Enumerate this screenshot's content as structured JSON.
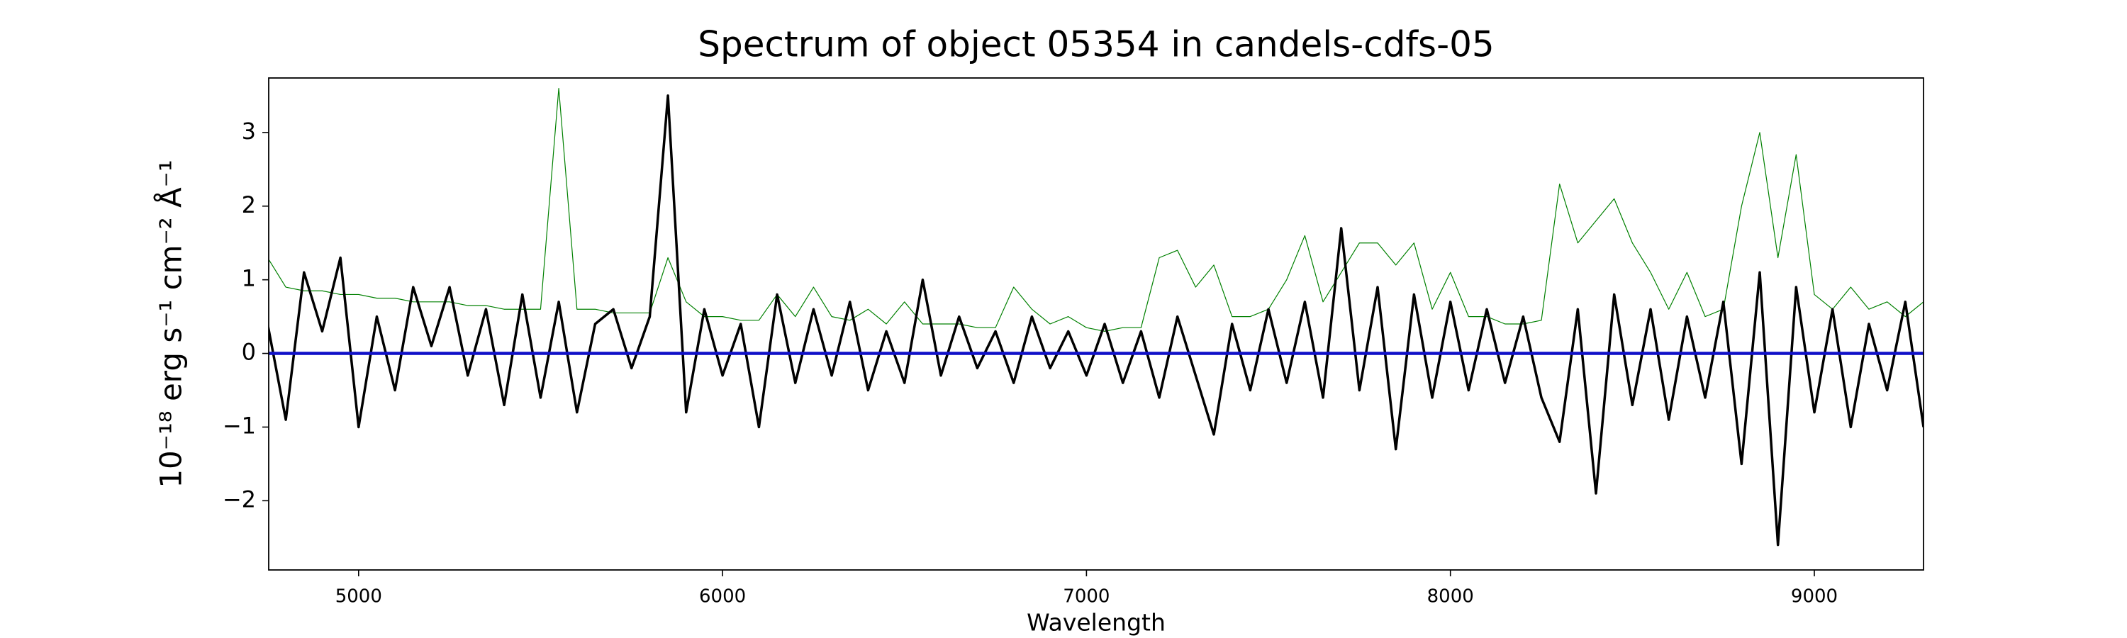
{
  "chart_data": {
    "type": "line",
    "title": "Spectrum of object 05354 in candels-cdfs-05",
    "x_label": "Wavelength",
    "y_label": "10⁻¹⁸ erg s⁻¹ cm⁻² Å⁻¹",
    "xlim": [
      4753,
      9300
    ],
    "ylim": [
      -2.94,
      3.74
    ],
    "xticks": [
      5000,
      6000,
      7000,
      8000,
      9000
    ],
    "yticks": [
      {
        "value": -2,
        "label": "−2"
      },
      {
        "value": -1,
        "label": "−1"
      },
      0,
      1,
      2,
      3
    ],
    "grid": false,
    "series": [
      {
        "color": "#008000",
        "width": 1.2,
        "x": [
          4750,
          4800,
          4850,
          4900,
          4950,
          5000,
          5050,
          5100,
          5150,
          5200,
          5250,
          5300,
          5350,
          5400,
          5450,
          5500,
          5550,
          5600,
          5650,
          5700,
          5750,
          5800,
          5850,
          5900,
          5950,
          6000,
          6050,
          6100,
          6150,
          6200,
          6250,
          6300,
          6350,
          6400,
          6450,
          6500,
          6550,
          6600,
          6650,
          6700,
          6750,
          6800,
          6850,
          6900,
          6950,
          7000,
          7050,
          7100,
          7150,
          7200,
          7250,
          7300,
          7350,
          7400,
          7450,
          7500,
          7550,
          7600,
          7650,
          7700,
          7750,
          7800,
          7850,
          7900,
          7950,
          8000,
          8050,
          8100,
          8150,
          8200,
          8250,
          8300,
          8350,
          8400,
          8450,
          8500,
          8550,
          8600,
          8650,
          8700,
          8750,
          8800,
          8850,
          8900,
          8950,
          9000,
          9050,
          9100,
          9150,
          9200,
          9250,
          9300
        ],
        "values": [
          1.3,
          0.9,
          0.85,
          0.85,
          0.8,
          0.8,
          0.75,
          0.75,
          0.7,
          0.7,
          0.7,
          0.65,
          0.65,
          0.6,
          0.6,
          0.6,
          3.6,
          0.6,
          0.6,
          0.55,
          0.55,
          0.55,
          1.3,
          0.7,
          0.5,
          0.5,
          0.45,
          0.45,
          0.8,
          0.5,
          0.9,
          0.5,
          0.45,
          0.6,
          0.4,
          0.7,
          0.4,
          0.4,
          0.4,
          0.35,
          0.35,
          0.9,
          0.6,
          0.4,
          0.5,
          0.35,
          0.3,
          0.35,
          0.35,
          1.3,
          1.4,
          0.9,
          1.2,
          0.5,
          0.5,
          0.6,
          1.0,
          1.6,
          0.7,
          1.1,
          1.5,
          1.5,
          1.2,
          1.5,
          0.6,
          1.1,
          0.5,
          0.5,
          0.4,
          0.4,
          0.45,
          2.3,
          1.5,
          1.8,
          2.1,
          1.5,
          1.1,
          0.6,
          1.1,
          0.5,
          0.6,
          2.0,
          3.0,
          1.3,
          2.7,
          0.8,
          0.6,
          0.9,
          0.6,
          0.7,
          0.5,
          0.7
        ]
      },
      {
        "color": "#000000",
        "width": 3.5,
        "x": [
          4750,
          4800,
          4850,
          4900,
          4950,
          5000,
          5050,
          5100,
          5150,
          5200,
          5250,
          5300,
          5350,
          5400,
          5450,
          5500,
          5550,
          5600,
          5650,
          5700,
          5750,
          5800,
          5850,
          5900,
          5950,
          6000,
          6050,
          6100,
          6150,
          6200,
          6250,
          6300,
          6350,
          6400,
          6450,
          6500,
          6550,
          6600,
          6650,
          6700,
          6750,
          6800,
          6850,
          6900,
          6950,
          7000,
          7050,
          7100,
          7150,
          7200,
          7250,
          7300,
          7350,
          7400,
          7450,
          7500,
          7550,
          7600,
          7650,
          7700,
          7750,
          7800,
          7850,
          7900,
          7950,
          8000,
          8050,
          8100,
          8150,
          8200,
          8250,
          8300,
          8350,
          8400,
          8450,
          8500,
          8550,
          8600,
          8650,
          8700,
          8750,
          8800,
          8850,
          8900,
          8950,
          9000,
          9050,
          9100,
          9150,
          9200,
          9250,
          9300
        ],
        "values": [
          0.4,
          -0.9,
          1.1,
          0.3,
          1.3,
          -1.0,
          0.5,
          -0.5,
          0.9,
          0.1,
          0.9,
          -0.3,
          0.6,
          -0.7,
          0.8,
          -0.6,
          0.7,
          -0.8,
          0.4,
          0.6,
          -0.2,
          0.5,
          3.5,
          -0.8,
          0.6,
          -0.3,
          0.4,
          -1.0,
          0.8,
          -0.4,
          0.6,
          -0.3,
          0.7,
          -0.5,
          0.3,
          -0.4,
          1.0,
          -0.3,
          0.5,
          -0.2,
          0.3,
          -0.4,
          0.5,
          -0.2,
          0.3,
          -0.3,
          0.4,
          -0.4,
          0.3,
          -0.6,
          0.5,
          -0.3,
          -1.1,
          0.4,
          -0.5,
          0.6,
          -0.4,
          0.7,
          -0.6,
          1.7,
          -0.5,
          0.9,
          -1.3,
          0.8,
          -0.6,
          0.7,
          -0.5,
          0.6,
          -0.4,
          0.5,
          -0.6,
          -1.2,
          0.6,
          -1.9,
          0.8,
          -0.7,
          0.6,
          -0.9,
          0.5,
          -0.6,
          0.7,
          -1.5,
          1.1,
          -2.6,
          0.9,
          -0.8,
          0.6,
          -1.0,
          0.4,
          -0.5,
          0.7,
          -1.0
        ]
      },
      {
        "color": "#1010c8",
        "width": 4.5,
        "x": [
          4753,
          9300
        ],
        "values": [
          0,
          0
        ]
      }
    ]
  }
}
